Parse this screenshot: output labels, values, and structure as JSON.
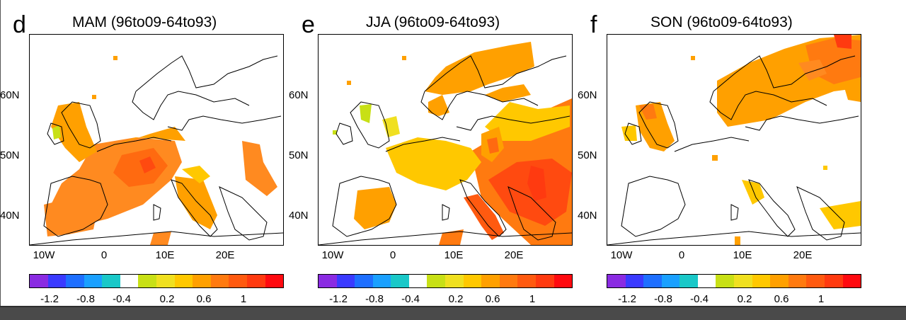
{
  "panels": [
    {
      "letter": "d",
      "title": "MAM  (96to09-64to93)"
    },
    {
      "letter": "e",
      "title": "JJA  (96to09-64to93)"
    },
    {
      "letter": "f",
      "title": "SON  (96to09-64to93)"
    }
  ],
  "lat_labels": [
    "60N",
    "50N",
    "40N"
  ],
  "lon_labels": [
    "10W",
    "0",
    "10E",
    "20E"
  ],
  "colorbar": {
    "colors": [
      "#8a2be2",
      "#3a3aff",
      "#1e6fff",
      "#1aa0ff",
      "#1ac8c8",
      "#ffffff",
      "#c8e016",
      "#f0e020",
      "#ffc800",
      "#ffa000",
      "#ff7a10",
      "#ff5a10",
      "#ff3a10",
      "#ff0a10"
    ],
    "tick_labels": [
      "-1.2",
      "-0.8",
      "-0.4",
      "0.2",
      "0.6",
      "1"
    ]
  }
}
